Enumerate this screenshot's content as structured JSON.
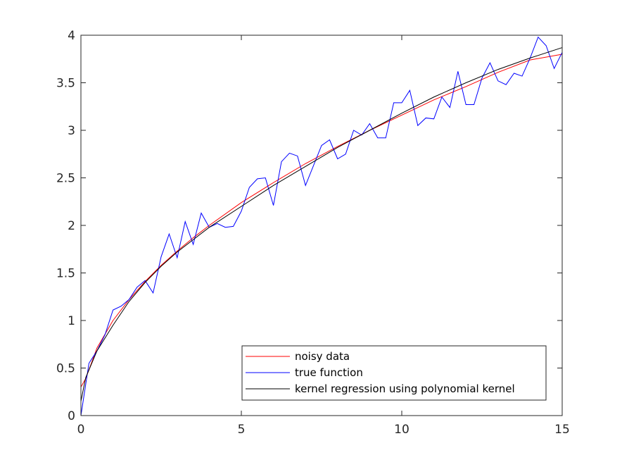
{
  "chart_data": {
    "type": "line",
    "title": "",
    "xlabel": "",
    "ylabel": "",
    "xlim": [
      0,
      15
    ],
    "ylim": [
      0,
      4
    ],
    "grid": false,
    "legend_position": "bottom-right",
    "x_ticks": [
      {
        "value": 0,
        "label": "0"
      },
      {
        "value": 5,
        "label": "5"
      },
      {
        "value": 10,
        "label": "10"
      },
      {
        "value": 15,
        "label": "15"
      }
    ],
    "y_ticks": [
      {
        "value": 0,
        "label": "0"
      },
      {
        "value": 0.5,
        "label": "0.5"
      },
      {
        "value": 1,
        "label": "1"
      },
      {
        "value": 1.5,
        "label": "1.5"
      },
      {
        "value": 2,
        "label": "2"
      },
      {
        "value": 2.5,
        "label": "2.5"
      },
      {
        "value": 3,
        "label": "3"
      },
      {
        "value": 3.5,
        "label": "3.5"
      },
      {
        "value": 4,
        "label": "4"
      }
    ],
    "series": [
      {
        "name": "noisy data",
        "color": "#ff0000",
        "x": [
          0,
          0.15,
          0.5,
          1,
          1.5,
          2,
          2.5,
          3,
          3.5,
          4,
          5,
          6,
          7,
          8,
          9,
          10,
          11,
          12,
          13,
          14,
          15
        ],
        "y": [
          0.3,
          0.39,
          0.71,
          1.0,
          1.22,
          1.41,
          1.58,
          1.73,
          1.87,
          2.0,
          2.24,
          2.45,
          2.65,
          2.83,
          3.0,
          3.16,
          3.32,
          3.46,
          3.61,
          3.74,
          3.8
        ]
      },
      {
        "name": "true function",
        "color": "#0000ff",
        "x": [
          0,
          0.25,
          0.5,
          0.75,
          1.0,
          1.25,
          1.5,
          1.75,
          2.0,
          2.25,
          2.5,
          2.75,
          3.0,
          3.25,
          3.5,
          3.75,
          4.0,
          4.25,
          4.5,
          4.75,
          5.0,
          5.25,
          5.5,
          5.75,
          6.0,
          6.25,
          6.5,
          6.75,
          7.0,
          7.25,
          7.5,
          7.75,
          8.0,
          8.25,
          8.5,
          8.75,
          9.0,
          9.25,
          9.5,
          9.75,
          10.0,
          10.25,
          10.5,
          10.75,
          11.0,
          11.25,
          11.5,
          11.75,
          12.0,
          12.25,
          12.5,
          12.75,
          13.0,
          13.25,
          13.5,
          13.75,
          14.0,
          14.25,
          14.5,
          14.75,
          15.0
        ],
        "y": [
          0.0,
          0.55,
          0.68,
          0.85,
          1.11,
          1.15,
          1.22,
          1.35,
          1.42,
          1.29,
          1.67,
          1.91,
          1.66,
          2.04,
          1.8,
          2.13,
          1.98,
          2.02,
          1.98,
          1.99,
          2.15,
          2.4,
          2.49,
          2.5,
          2.21,
          2.67,
          2.76,
          2.73,
          2.42,
          2.63,
          2.84,
          2.9,
          2.7,
          2.75,
          3.0,
          2.95,
          3.07,
          2.92,
          2.92,
          3.29,
          3.29,
          3.42,
          3.05,
          3.13,
          3.12,
          3.35,
          3.24,
          3.62,
          3.27,
          3.27,
          3.55,
          3.71,
          3.52,
          3.48,
          3.6,
          3.57,
          3.76,
          3.98,
          3.89,
          3.65,
          3.82
        ]
      },
      {
        "name": "kernel regression using polynomial kernel",
        "color": "#000000",
        "x": [
          0,
          0.15,
          0.5,
          1,
          1.5,
          2,
          2.5,
          3,
          3.5,
          4,
          5,
          6,
          7,
          8,
          9,
          10,
          11,
          12,
          13,
          14,
          15
        ],
        "y": [
          0.15,
          0.4,
          0.68,
          0.95,
          1.2,
          1.4,
          1.57,
          1.72,
          1.85,
          1.98,
          2.2,
          2.42,
          2.62,
          2.82,
          3.0,
          3.18,
          3.35,
          3.5,
          3.64,
          3.76,
          3.87
        ]
      }
    ]
  }
}
